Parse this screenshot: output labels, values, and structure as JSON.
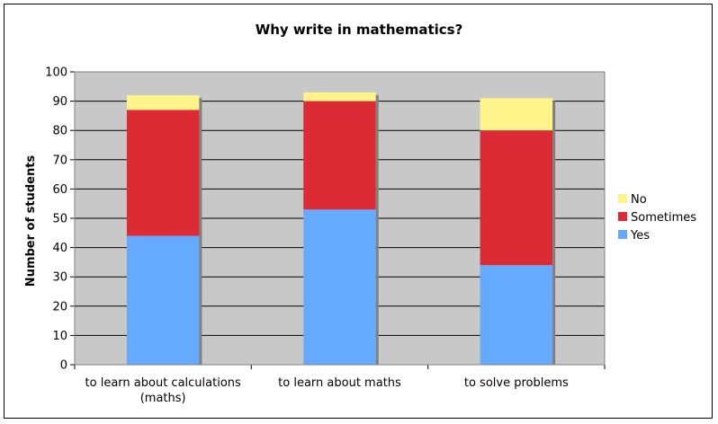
{
  "chart_data": {
    "type": "bar",
    "stacked": true,
    "title": "Why write in mathematics?",
    "xlabel": "",
    "ylabel": "Number of students",
    "ylim": [
      0,
      100
    ],
    "yticks": [
      0,
      10,
      20,
      30,
      40,
      50,
      60,
      70,
      80,
      90,
      100
    ],
    "categories": [
      [
        "to learn about calculations",
        "(maths)"
      ],
      [
        "to learn about maths"
      ],
      [
        "to solve problems"
      ]
    ],
    "series": [
      {
        "name": "Yes",
        "color": "#66aaff",
        "values": [
          44,
          53,
          34
        ]
      },
      {
        "name": "Sometimes",
        "color": "#dd2b35",
        "values": [
          43,
          37,
          46
        ]
      },
      {
        "name": "No",
        "color": "#fff48a",
        "values": [
          5,
          3,
          11
        ]
      }
    ],
    "legend_order": [
      "No",
      "Sometimes",
      "Yes"
    ],
    "legend_position": "right",
    "grid": true,
    "plot_background": "#c8c8c8"
  }
}
